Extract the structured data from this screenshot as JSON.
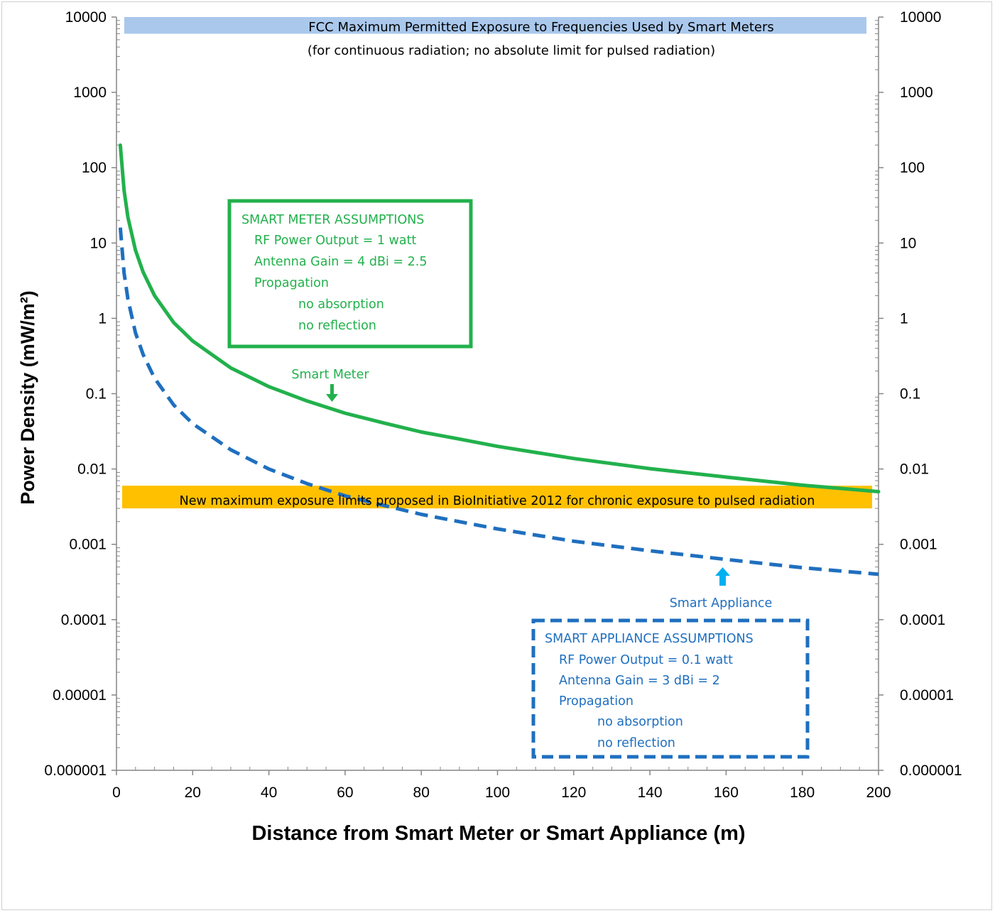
{
  "chart_data": {
    "type": "line",
    "xlabel": "Distance from Smart Meter or Smart Appliance (m)",
    "ylabel": "Power Density (mW/m²)",
    "xlim": [
      0,
      200
    ],
    "ylim": [
      1e-06,
      10000
    ],
    "yscale": "log",
    "x_ticks": [
      "0",
      "20",
      "40",
      "60",
      "80",
      "100",
      "120",
      "140",
      "160",
      "180",
      "200"
    ],
    "y_ticks": [
      "10000",
      "1000",
      "100",
      "10",
      "1",
      "0.1",
      "0.01",
      "0.001",
      "0.0001",
      "0.00001",
      "0.000001"
    ],
    "grid": false,
    "series": [
      {
        "name": "Smart Meter",
        "color": "#22b14c",
        "line_style": "solid",
        "x": [
          1,
          2,
          3,
          5,
          7,
          10,
          15,
          20,
          30,
          40,
          50,
          60,
          70,
          80,
          90,
          100,
          120,
          140,
          160,
          180,
          200
        ],
        "y": [
          199,
          50,
          22,
          8,
          4.1,
          2,
          0.88,
          0.5,
          0.22,
          0.124,
          0.08,
          0.055,
          0.041,
          0.031,
          0.025,
          0.02,
          0.0138,
          0.0101,
          0.0078,
          0.0061,
          0.005
        ]
      },
      {
        "name": "Smart Appliance",
        "color": "#1f6fbf",
        "line_style": "dashed",
        "x": [
          1,
          2,
          3,
          5,
          7,
          10,
          15,
          20,
          30,
          40,
          50,
          60,
          70,
          80,
          90,
          100,
          120,
          140,
          160,
          180,
          200
        ],
        "y": [
          16,
          4,
          1.8,
          0.64,
          0.33,
          0.16,
          0.071,
          0.04,
          0.018,
          0.01,
          0.0064,
          0.0044,
          0.0033,
          0.0025,
          0.002,
          0.0016,
          0.0011,
          0.00082,
          0.00063,
          0.00049,
          0.0004
        ]
      }
    ],
    "bands": [
      {
        "text": "FCC Maximum Permitted Exposure to Frequencies Used by Smart Meters",
        "color": "#a9c8ec",
        "y_range": [
          6000,
          10000
        ]
      },
      {
        "text": "New maximum exposure limits proposed in BioInitiative 2012 for chronic exposure to pulsed radiation",
        "color": "#ffc000",
        "y_range": [
          0.003,
          0.006
        ]
      }
    ],
    "annotations": {
      "fcc_subtitle": "(for continuous  radiation; no absolute limit for pulsed radiation)",
      "meter_label": "Smart Meter",
      "appliance_label": "Smart Appliance",
      "meter_box": {
        "title": "SMART METER ASSUMPTIONS",
        "lines": [
          "RF Power  Output = 1 watt",
          "Antenna Gain =  4 dBi = 2.5",
          "Propagation",
          "no absorption",
          "no reflection"
        ],
        "color": "#22b14c"
      },
      "appliance_box": {
        "title": "SMART APPLIANCE ASSUMPTIONS",
        "lines": [
          "RF Power Output = 0.1 watt",
          "Antenna Gain = 3 dBi = 2",
          "Propagation",
          "no absorption",
          "no reflection"
        ],
        "color": "#1f6fbf"
      }
    }
  }
}
